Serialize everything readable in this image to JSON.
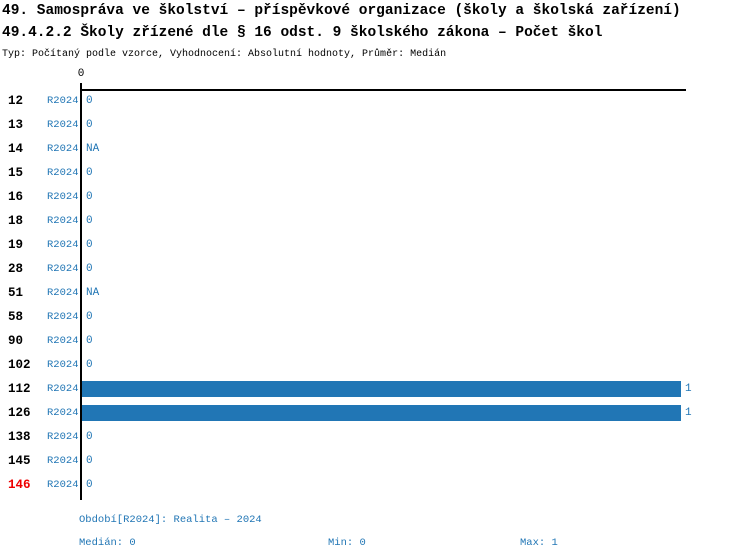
{
  "title": {
    "line1": "49. Samospráva ve školství – příspěvkové organizace (školy a školská zařízení)",
    "line2": "49.4.2.2 Školy zřízené dle § 16 odst. 9 školského zákona – Počet škol",
    "line3": "Typ: Počítaný podle vzorce, Vyhodnocení: Absolutní hodnoty, Průměr: Medián"
  },
  "colors": {
    "accent_blue": "#2176b5",
    "bar_blue": "#2176b5",
    "highlight_red": "#ee0000",
    "axis_black": "#000000"
  },
  "chart_data": {
    "type": "bar",
    "orientation": "horizontal",
    "title": "49.4.2.2 Školy zřízené dle § 16 odst. 9 školského zákona – Počet škol",
    "x_axis": {
      "tick_label": "0",
      "min": 0,
      "max": 1,
      "grid": false
    },
    "series_period": "R2024",
    "categories": [
      "12",
      "13",
      "14",
      "15",
      "16",
      "18",
      "19",
      "28",
      "51",
      "58",
      "90",
      "102",
      "112",
      "126",
      "138",
      "145",
      "146"
    ],
    "values": [
      0,
      0,
      null,
      0,
      0,
      0,
      0,
      0,
      null,
      0,
      0,
      0,
      1,
      1,
      0,
      0,
      0
    ],
    "highlighted_category": "146",
    "rows": [
      {
        "category": "12",
        "period": "R2024",
        "value": 0,
        "value_label": "0",
        "highlight": false
      },
      {
        "category": "13",
        "period": "R2024",
        "value": 0,
        "value_label": "0",
        "highlight": false
      },
      {
        "category": "14",
        "period": "R2024",
        "value": null,
        "value_label": "NA",
        "highlight": false
      },
      {
        "category": "15",
        "period": "R2024",
        "value": 0,
        "value_label": "0",
        "highlight": false
      },
      {
        "category": "16",
        "period": "R2024",
        "value": 0,
        "value_label": "0",
        "highlight": false
      },
      {
        "category": "18",
        "period": "R2024",
        "value": 0,
        "value_label": "0",
        "highlight": false
      },
      {
        "category": "19",
        "period": "R2024",
        "value": 0,
        "value_label": "0",
        "highlight": false
      },
      {
        "category": "28",
        "period": "R2024",
        "value": 0,
        "value_label": "0",
        "highlight": false
      },
      {
        "category": "51",
        "period": "R2024",
        "value": null,
        "value_label": "NA",
        "highlight": false
      },
      {
        "category": "58",
        "period": "R2024",
        "value": 0,
        "value_label": "0",
        "highlight": false
      },
      {
        "category": "90",
        "period": "R2024",
        "value": 0,
        "value_label": "0",
        "highlight": false
      },
      {
        "category": "102",
        "period": "R2024",
        "value": 0,
        "value_label": "0",
        "highlight": false
      },
      {
        "category": "112",
        "period": "R2024",
        "value": 1,
        "value_label": "1",
        "highlight": false
      },
      {
        "category": "126",
        "period": "R2024",
        "value": 1,
        "value_label": "1",
        "highlight": false
      },
      {
        "category": "138",
        "period": "R2024",
        "value": 0,
        "value_label": "0",
        "highlight": false
      },
      {
        "category": "145",
        "period": "R2024",
        "value": 0,
        "value_label": "0",
        "highlight": false
      },
      {
        "category": "146",
        "period": "R2024",
        "value": 0,
        "value_label": "0",
        "highlight": true
      }
    ],
    "footer": {
      "period": "Období[R2024]: Realita – 2024",
      "median": "Medián: 0",
      "min": "Min: 0",
      "max": "Max: 1"
    }
  }
}
